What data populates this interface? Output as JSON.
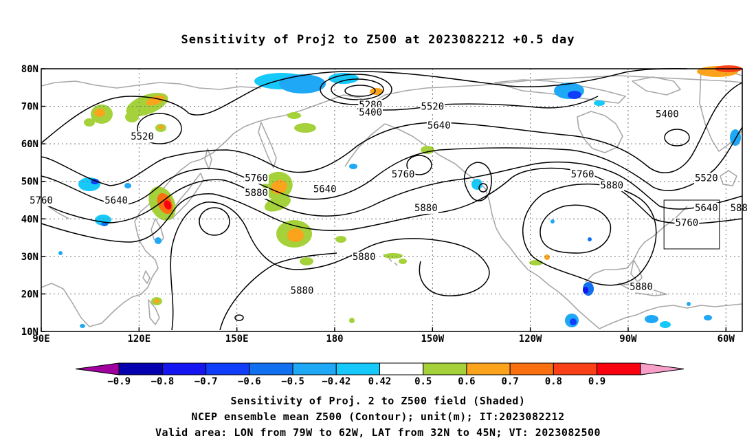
{
  "title": "Sensitivity of Proj2 to Z500 at 2023082212 +0.5 day",
  "x_ticks": [
    "90E",
    "120E",
    "150E",
    "180",
    "150W",
    "120W",
    "90W",
    "60W"
  ],
  "y_ticks": [
    "80N",
    "70N",
    "60N",
    "50N",
    "40N",
    "30N",
    "20N",
    "10N"
  ],
  "lon_range": [
    90,
    305
  ],
  "lat_range": [
    10,
    80
  ],
  "contour_labels": [
    {
      "text": "5280",
      "lon": 191,
      "lat": 70.5
    },
    {
      "text": "5400",
      "lon": 191,
      "lat": 68.5
    },
    {
      "text": "5520",
      "lon": 210,
      "lat": 70
    },
    {
      "text": "5400",
      "lon": 282,
      "lat": 68
    },
    {
      "text": "5640",
      "lon": 212,
      "lat": 65
    },
    {
      "text": "5520",
      "lon": 121,
      "lat": 62
    },
    {
      "text": "5520",
      "lon": 294,
      "lat": 51
    },
    {
      "text": "5760",
      "lon": 90,
      "lat": 45
    },
    {
      "text": "5640",
      "lon": 113,
      "lat": 45
    },
    {
      "text": "5760",
      "lon": 156,
      "lat": 51
    },
    {
      "text": "5640",
      "lon": 177,
      "lat": 48
    },
    {
      "text": "5880",
      "lon": 156,
      "lat": 47
    },
    {
      "text": "5760",
      "lon": 201,
      "lat": 52
    },
    {
      "text": "5760",
      "lon": 256,
      "lat": 52
    },
    {
      "text": "5880",
      "lon": 265,
      "lat": 49
    },
    {
      "text": "5880",
      "lon": 208,
      "lat": 43
    },
    {
      "text": "5640",
      "lon": 294,
      "lat": 43
    },
    {
      "text": "588",
      "lon": 304,
      "lat": 43
    },
    {
      "text": "5760",
      "lon": 288,
      "lat": 39
    },
    {
      "text": "5880",
      "lon": 189,
      "lat": 30
    },
    {
      "text": "5880",
      "lon": 170,
      "lat": 21
    },
    {
      "text": "5880",
      "lon": 274,
      "lat": 22
    }
  ],
  "valid_box": {
    "lon": [
      281,
      298
    ],
    "lat": [
      32,
      45
    ]
  },
  "colorbar": {
    "colors": [
      "#a0009e",
      "#0500b0",
      "#1515f2",
      "#0f3dfa",
      "#1070f0",
      "#1ea8f5",
      "#17c8fa",
      "#ffffff",
      "#a5d23a",
      "#fba31d",
      "#fa6f10",
      "#fa4016",
      "#f90210",
      "#f79ec9"
    ],
    "labels": [
      "−0.9",
      "−0.8",
      "−0.7",
      "−0.6",
      "−0.5",
      "−0.42",
      "0.42",
      "0.5",
      "0.6",
      "0.7",
      "0.8",
      "0.9"
    ]
  },
  "caption_lines": [
    "Sensitivity of Proj. 2 to Z500 field (Shaded)",
    "NCEP ensemble mean Z500 (Contour); unit(m); IT:2023082212",
    "Valid area: LON from 79W to 62W, LAT from 32N to 45N; VT: 2023082500"
  ]
}
